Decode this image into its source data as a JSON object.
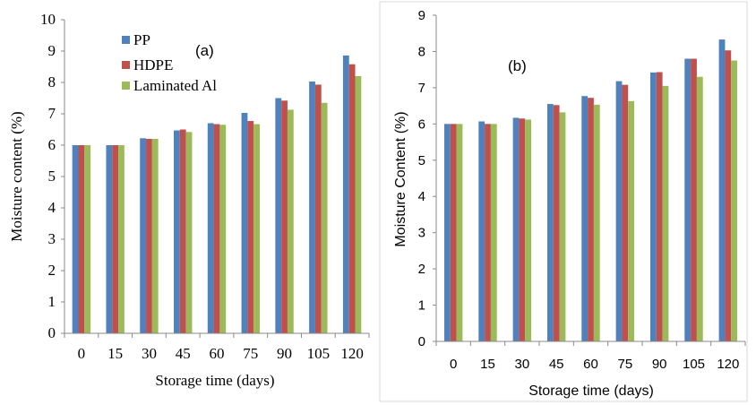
{
  "series_style": [
    {
      "name": "PP",
      "color": "#4f81bd"
    },
    {
      "name": "HDPE",
      "color": "#c0504d"
    },
    {
      "name": "Laminated Al",
      "color": "#9bbb59"
    }
  ],
  "chart_data": [
    {
      "type": "bar",
      "panel_label": "(a)",
      "categories": [
        "0",
        "15",
        "30",
        "45",
        "60",
        "75",
        "90",
        "105",
        "120"
      ],
      "xlabel": "Storage time (days)",
      "ylabel": "Moisture content (%)",
      "ylim": [
        0,
        10
      ],
      "yticks": [
        "0",
        "1",
        "2",
        "3",
        "4",
        "5",
        "6",
        "7",
        "8",
        "9",
        "10"
      ],
      "legend": "top-left",
      "grid": false,
      "series": [
        {
          "name": "PP",
          "values": [
            6.0,
            6.0,
            6.22,
            6.47,
            6.7,
            7.03,
            7.5,
            8.03,
            8.86
          ]
        },
        {
          "name": "HDPE",
          "values": [
            6.0,
            6.0,
            6.2,
            6.5,
            6.67,
            6.77,
            7.42,
            7.93,
            8.58
          ]
        },
        {
          "name": "Laminated Al",
          "values": [
            6.0,
            6.0,
            6.2,
            6.42,
            6.65,
            6.67,
            7.13,
            7.35,
            8.2
          ]
        }
      ]
    },
    {
      "type": "bar",
      "panel_label": "(b)",
      "categories": [
        "0",
        "15",
        "30",
        "45",
        "60",
        "75",
        "90",
        "105",
        "120"
      ],
      "xlabel": "Storage time (days)",
      "ylabel": "Moisture Content (%)",
      "ylim": [
        0,
        9
      ],
      "yticks": [
        "0",
        "1",
        "2",
        "3",
        "4",
        "5",
        "6",
        "7",
        "8",
        "9"
      ],
      "grid": false,
      "series": [
        {
          "name": "PP",
          "values": [
            6.0,
            6.07,
            6.17,
            6.55,
            6.77,
            7.18,
            7.42,
            7.8,
            8.33
          ]
        },
        {
          "name": "HDPE",
          "values": [
            6.0,
            6.0,
            6.15,
            6.52,
            6.72,
            7.08,
            7.43,
            7.8,
            8.03
          ]
        },
        {
          "name": "Laminated Al",
          "values": [
            6.0,
            6.0,
            6.12,
            6.32,
            6.53,
            6.63,
            7.05,
            7.3,
            7.75
          ]
        }
      ]
    }
  ]
}
